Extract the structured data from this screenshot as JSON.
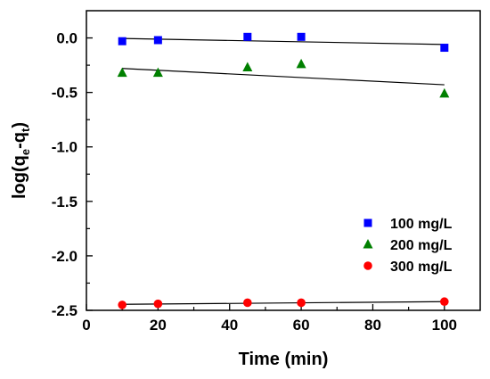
{
  "chart_data": {
    "type": "scatter",
    "xlabel": "Time (min)",
    "ylabel": {
      "prefix": "log(q",
      "sub1": "e",
      "mid": "-q",
      "sub2": "t",
      "suffix": ")"
    },
    "xlim": [
      0,
      110
    ],
    "ylim": [
      -2.5,
      0.25
    ],
    "xticks": [
      0,
      20,
      40,
      60,
      80,
      100
    ],
    "xtick_labels": [
      "0",
      "20",
      "40",
      "60",
      "80",
      "100"
    ],
    "yticks": [
      0.0,
      -0.5,
      -1.0,
      -1.5,
      -2.0,
      -2.5
    ],
    "ytick_labels": [
      "0.0",
      "-0.5",
      "-1.0",
      "-1.5",
      "-2.0",
      "-2.5"
    ],
    "x_minor_step": 10,
    "y_minor_step": 0.25,
    "grid": false,
    "legend_position": "lower-right",
    "series": [
      {
        "name": "100 mg/L",
        "marker": "square",
        "color": "#0000ff",
        "x": [
          10,
          20,
          45,
          60,
          100
        ],
        "y": [
          -0.03,
          -0.02,
          0.01,
          0.01,
          -0.09
        ],
        "fit": {
          "x": [
            10,
            100
          ],
          "y": [
            -0.005,
            -0.06
          ]
        }
      },
      {
        "name": "200 mg/L",
        "marker": "triangle",
        "color": "#008000",
        "x": [
          10,
          20,
          45,
          60,
          100
        ],
        "y": [
          -0.32,
          -0.32,
          -0.27,
          -0.24,
          -0.51
        ],
        "fit": {
          "x": [
            10,
            100
          ],
          "y": [
            -0.28,
            -0.43
          ]
        }
      },
      {
        "name": "300 mg/L",
        "marker": "circle",
        "color": "#ff0000",
        "x": [
          10,
          20,
          45,
          60,
          100
        ],
        "y": [
          -2.45,
          -2.44,
          -2.43,
          -2.43,
          -2.42
        ],
        "fit": {
          "x": [
            10,
            100
          ],
          "y": [
            -2.445,
            -2.42
          ]
        }
      }
    ]
  }
}
